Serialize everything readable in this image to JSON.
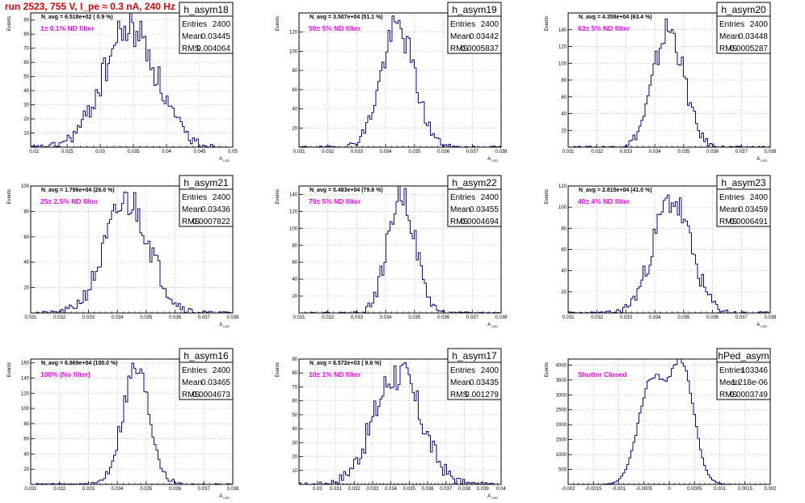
{
  "page": {
    "title": "run 2523,   755 V, I_pe ≈ 0.3 nA, 240 Hz"
  },
  "stat_labels": {
    "entries": "Entries",
    "mean": "Mean",
    "rms": "RMS"
  },
  "colors": {
    "hist": "#0a0a9c",
    "filter_text": "#ff00ff",
    "title_text": "#e00000",
    "grid": "#b0b0b0"
  },
  "chart_data": [
    {
      "type": "histogram",
      "name": "h_asym18",
      "ylabel": "Events",
      "xlabel": "A_LED",
      "navg": "N_avg = 6.518e+02 ( 0.9 %)",
      "filter": "1± 0.1% ND filter",
      "entries": "2400",
      "mean": "0.03445",
      "rms": "0.004064",
      "xlim": [
        0.0195,
        0.05
      ],
      "ylim": [
        0,
        95
      ],
      "xticks": [
        0.02,
        0.025,
        0.03,
        0.035,
        0.04,
        0.045,
        0.05
      ],
      "yticks": [
        10,
        20,
        30,
        40,
        50,
        60,
        70,
        80,
        90
      ],
      "mu": 0.0345,
      "sigma": 0.004,
      "peak": 85,
      "seed": 18
    },
    {
      "type": "histogram",
      "name": "h_asym19",
      "ylabel": "Events",
      "xlabel": "A_LED",
      "navg": "N_avg = 3.507e+04 (51.1 %)",
      "filter": "50± 5% ND filter",
      "entries": "2400",
      "mean": "0.03442",
      "rms": "0.0005837",
      "xlim": [
        0.031,
        0.038
      ],
      "ylim": [
        0,
        140
      ],
      "xticks": [
        0.031,
        0.032,
        0.033,
        0.034,
        0.035,
        0.036,
        0.037,
        0.038
      ],
      "yticks": [
        20,
        40,
        60,
        80,
        100,
        120
      ],
      "mu": 0.03442,
      "sigma": 0.00058,
      "peak": 125,
      "seed": 19
    },
    {
      "type": "histogram",
      "name": "h_asym20",
      "ylabel": "Events",
      "xlabel": "A_LED",
      "navg": "N_avg = 4.358e+04 (63.4 %)",
      "filter": "63± 5% ND filter",
      "entries": "2400",
      "mean": "0.03448",
      "rms": "0.0005287",
      "xlim": [
        0.031,
        0.038
      ],
      "ylim": [
        0,
        160
      ],
      "xticks": [
        0.031,
        0.032,
        0.033,
        0.034,
        0.035,
        0.036,
        0.037,
        0.038
      ],
      "yticks": [
        20,
        40,
        60,
        80,
        100,
        120,
        140
      ],
      "mu": 0.03448,
      "sigma": 0.00053,
      "peak": 140,
      "seed": 20
    },
    {
      "type": "histogram",
      "name": "h_asym21",
      "ylabel": "Events",
      "xlabel": "A_LED",
      "navg": "N_avg = 1.786e+04 (26.0 %)",
      "filter": "25± 2.5% ND filter",
      "entries": "2400",
      "mean": "0.03436",
      "rms": "0.0007822",
      "xlim": [
        0.031,
        0.038
      ],
      "ylim": [
        0,
        100
      ],
      "xticks": [
        0.031,
        0.032,
        0.033,
        0.034,
        0.035,
        0.036,
        0.037,
        0.038
      ],
      "yticks": [
        20,
        40,
        60,
        80,
        100
      ],
      "mu": 0.03436,
      "sigma": 0.00078,
      "peak": 88,
      "seed": 21
    },
    {
      "type": "histogram",
      "name": "h_asym22",
      "ylabel": "Events",
      "xlabel": "A_LED",
      "navg": "N_avg = 5.483e+04 (79.8 %)",
      "filter": "79± 5% ND filter",
      "entries": "2400",
      "mean": "0.03455",
      "rms": "0.0004694",
      "xlim": [
        0.031,
        0.038
      ],
      "ylim": [
        0,
        150
      ],
      "xticks": [
        0.031,
        0.032,
        0.033,
        0.034,
        0.035,
        0.036,
        0.037,
        0.038
      ],
      "yticks": [
        20,
        40,
        60,
        80,
        100,
        120,
        140
      ],
      "mu": 0.03455,
      "sigma": 0.00047,
      "peak": 142,
      "seed": 22
    },
    {
      "type": "histogram",
      "name": "h_asym23",
      "ylabel": "Events",
      "xlabel": "A_LED",
      "navg": "N_avg = 2.815e+04 (41.0 %)",
      "filter": "40± 4% ND filter",
      "entries": "2400",
      "mean": "0.03459",
      "rms": "0.0006491",
      "xlim": [
        0.031,
        0.038
      ],
      "ylim": [
        0,
        120
      ],
      "xticks": [
        0.031,
        0.032,
        0.033,
        0.034,
        0.035,
        0.036,
        0.037,
        0.038
      ],
      "yticks": [
        20,
        40,
        60,
        80,
        100,
        120
      ],
      "mu": 0.03459,
      "sigma": 0.00065,
      "peak": 107,
      "seed": 23
    },
    {
      "type": "histogram",
      "name": "h_asym16",
      "ylabel": "Events",
      "xlabel": "A_LED",
      "navg": "N_avg = 6.869e+04 (100.0 %)",
      "filter": "100% (No filter)",
      "entries": "2400",
      "mean": "0.03465",
      "rms": "0.0004673",
      "xlim": [
        0.031,
        0.038
      ],
      "ylim": [
        0,
        165
      ],
      "xticks": [
        0.031,
        0.032,
        0.033,
        0.034,
        0.035,
        0.036,
        0.037,
        0.038
      ],
      "yticks": [
        20,
        40,
        60,
        80,
        100,
        120,
        140,
        160
      ],
      "mu": 0.03465,
      "sigma": 0.00047,
      "peak": 152,
      "seed": 16
    },
    {
      "type": "histogram",
      "name": "h_asym17",
      "ylabel": "Events",
      "xlabel": "A_LED",
      "navg": "N_avg = 6.572e+03 ( 9.6 %)",
      "filter": "10± 1% ND filter",
      "entries": "2400",
      "mean": "0.03435",
      "rms": "0.001279",
      "xlim": [
        0.029,
        0.04
      ],
      "ylim": [
        0,
        90
      ],
      "xticks": [
        0.03,
        0.031,
        0.032,
        0.033,
        0.034,
        0.035,
        0.036,
        0.037,
        0.038,
        0.039,
        0.04
      ],
      "yticks": [
        10,
        20,
        30,
        40,
        50,
        60,
        70,
        80,
        90
      ],
      "mu": 0.03435,
      "sigma": 0.00128,
      "peak": 80,
      "seed": 17
    },
    {
      "type": "histogram",
      "name": "hPed_asym",
      "ylabel": "Events",
      "xlabel": "",
      "navg": "",
      "filter": "Shutter Closed",
      "entries": "103346",
      "mean": "-1.218e-06",
      "rms": "0.0003749",
      "xlim": [
        -0.002,
        0.002
      ],
      "ylim": [
        0,
        4200
      ],
      "xticks": [
        -0.002,
        -0.0015,
        -0.001,
        -0.0005,
        0,
        0.0005,
        0.001,
        0.0015,
        0.002
      ],
      "yticks": [
        500,
        1000,
        1500,
        2000,
        2500,
        3000,
        3500,
        4000
      ],
      "mu": 0,
      "sigma": 0.00037,
      "peak": 3900,
      "bimodal": true,
      "seed": 99
    }
  ]
}
